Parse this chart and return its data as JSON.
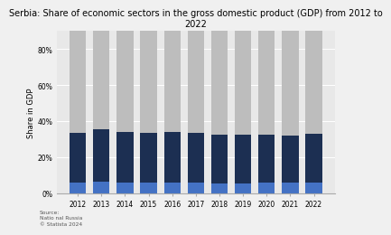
{
  "title": "Serbia: Share of economic sectors in the gross domestic product (GDP) from 2012 to\n2022",
  "ylabel": "Share in GDP",
  "years": [
    "2012",
    "2013",
    "2014",
    "2015",
    "2016",
    "2017",
    "2018",
    "2019",
    "2020",
    "2021",
    "2022"
  ],
  "agriculture": [
    5.8,
    6.5,
    6.0,
    5.8,
    5.9,
    5.8,
    5.5,
    5.6,
    6.1,
    5.7,
    5.8
  ],
  "industry": [
    27.5,
    29.0,
    27.8,
    27.5,
    28.2,
    27.8,
    27.2,
    26.8,
    26.5,
    26.3,
    27.3
  ],
  "services": [
    57.5,
    55.8,
    57.0,
    57.5,
    56.5,
    57.2,
    58.5,
    58.8,
    58.8,
    59.0,
    58.0
  ],
  "color_agriculture": "#4472c4",
  "color_industry": "#1c2f52",
  "color_services": "#bdbdbd",
  "ylim": [
    0,
    90
  ],
  "yticks": [
    0,
    20,
    40,
    60,
    80
  ],
  "ytick_labels": [
    "0%",
    "20%",
    "40%",
    "60%",
    "80%"
  ],
  "source_text": "Source:\nNatio nal Russia\n© Statista 2024",
  "background_color": "#f0f0f0",
  "plot_bg_color": "#e8e8e8",
  "bar_width": 0.7,
  "title_fontsize": 7.0,
  "axis_fontsize": 6.0,
  "tick_fontsize": 5.5
}
